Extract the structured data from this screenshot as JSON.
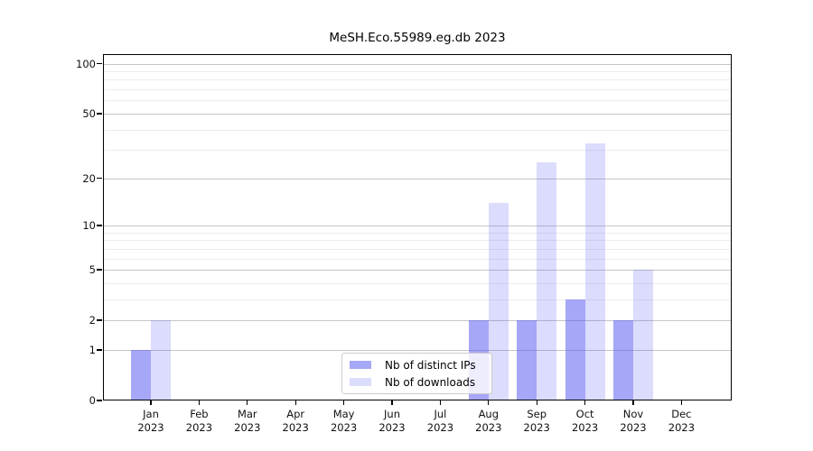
{
  "title": "MeSH.Eco.55989.eg.db 2023",
  "chart_data": {
    "type": "bar",
    "title": "MeSH.Eco.55989.eg.db 2023",
    "categories": [
      "Jan 2023",
      "Feb 2023",
      "Mar 2023",
      "Apr 2023",
      "May 2023",
      "Jun 2023",
      "Jul 2023",
      "Aug 2023",
      "Sep 2023",
      "Oct 2023",
      "Nov 2023",
      "Dec 2023"
    ],
    "series": [
      {
        "name": "Nb of distinct IPs",
        "fill": "rgba(80,80,240,0.5)",
        "values": [
          1,
          0,
          0,
          0,
          0,
          0,
          0,
          2,
          2,
          3,
          2,
          0
        ]
      },
      {
        "name": "Nb of downloads",
        "fill": "rgba(80,80,240,0.2)",
        "values": [
          2,
          0,
          0,
          0,
          0,
          0,
          0,
          14,
          25,
          33,
          5,
          0
        ]
      }
    ],
    "yscale": "log1p",
    "ylim": [
      0,
      114
    ],
    "y_major_ticks": [
      0,
      1,
      2,
      5,
      10,
      20,
      50,
      100
    ],
    "y_minor_ticks": [
      3,
      4,
      6,
      7,
      8,
      9,
      30,
      40,
      60,
      70,
      80,
      90
    ],
    "grid": true,
    "legend_position": "bottom-center"
  },
  "colors": {
    "bar_base": "#5050f0",
    "major_grid": "#c6c6c6",
    "minor_grid": "#ececec",
    "axis": "#000000",
    "legend_border": "#cccccc"
  }
}
